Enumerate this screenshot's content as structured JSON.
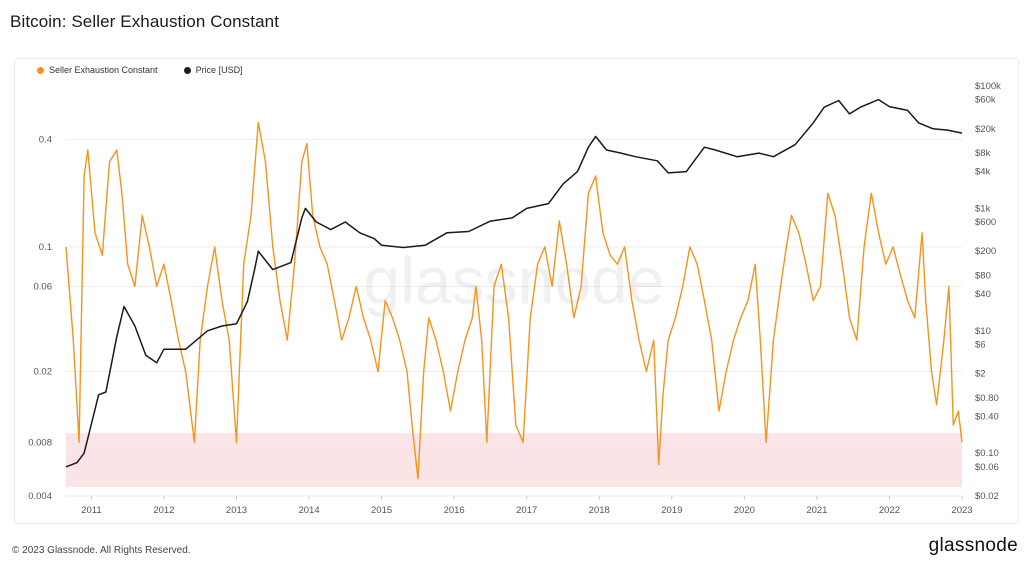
{
  "header": {
    "title": "Bitcoin: Seller Exhaustion Constant"
  },
  "footer": {
    "copyright": "© 2023 Glassnode. All Rights Reserved.",
    "brand": "glassnode"
  },
  "colors": {
    "sec": "#f7931a",
    "price": "#1a1a1a",
    "zone": "#fce4e6",
    "grid": "#eeeeee"
  },
  "chart_data": {
    "type": "line",
    "watermark": "glassnode",
    "legend": [
      {
        "name": "Seller Exhaustion Constant",
        "color": "#f7931a"
      },
      {
        "name": "Price [USD]",
        "color": "#1a1a1a"
      }
    ],
    "x_ticks": [
      "2011",
      "2012",
      "2013",
      "2014",
      "2015",
      "2016",
      "2017",
      "2018",
      "2019",
      "2020",
      "2021",
      "2022",
      "2023"
    ],
    "xlim": [
      2010.65,
      2023.0
    ],
    "left_axis": {
      "scale": "log",
      "ylim": [
        0.004,
        0.8
      ],
      "ticks": [
        {
          "v": 0.4,
          "label": "0.4"
        },
        {
          "v": 0.1,
          "label": "0.1"
        },
        {
          "v": 0.06,
          "label": "0.06"
        },
        {
          "v": 0.02,
          "label": "0.02"
        },
        {
          "v": 0.008,
          "label": "0.008"
        },
        {
          "v": 0.004,
          "label": "0.004"
        }
      ]
    },
    "right_axis": {
      "scale": "log",
      "ylim": [
        0.02,
        100000
      ],
      "ticks": [
        {
          "v": 100000,
          "label": "$100k"
        },
        {
          "v": 60000,
          "label": "$60k"
        },
        {
          "v": 20000,
          "label": "$20k"
        },
        {
          "v": 8000,
          "label": "$8k"
        },
        {
          "v": 4000,
          "label": "$4k"
        },
        {
          "v": 1000,
          "label": "$1k"
        },
        {
          "v": 600,
          "label": "$600"
        },
        {
          "v": 200,
          "label": "$200"
        },
        {
          "v": 80,
          "label": "$80"
        },
        {
          "v": 40,
          "label": "$40"
        },
        {
          "v": 10,
          "label": "$10"
        },
        {
          "v": 6,
          "label": "$6"
        },
        {
          "v": 2,
          "label": "$2"
        },
        {
          "v": 0.8,
          "label": "$0.80"
        },
        {
          "v": 0.4,
          "label": "$0.40"
        },
        {
          "v": 0.1,
          "label": "$0.10"
        },
        {
          "v": 0.06,
          "label": "$0.06"
        },
        {
          "v": 0.02,
          "label": "$0.02"
        }
      ]
    },
    "low_zone": [
      0.0045,
      0.009
    ],
    "series": [
      {
        "name": "Seller Exhaustion Constant",
        "axis": "left",
        "x": [
          2010.65,
          2010.75,
          2010.83,
          2010.9,
          2010.95,
          2011.05,
          2011.15,
          2011.25,
          2011.35,
          2011.42,
          2011.5,
          2011.6,
          2011.7,
          2011.8,
          2011.9,
          2012.0,
          2012.1,
          2012.2,
          2012.3,
          2012.42,
          2012.5,
          2012.6,
          2012.7,
          2012.8,
          2012.9,
          2013.0,
          2013.1,
          2013.2,
          2013.3,
          2013.4,
          2013.5,
          2013.6,
          2013.7,
          2013.8,
          2013.9,
          2013.97,
          2014.05,
          2014.15,
          2014.25,
          2014.35,
          2014.45,
          2014.55,
          2014.65,
          2014.75,
          2014.85,
          2014.95,
          2015.05,
          2015.15,
          2015.25,
          2015.35,
          2015.42,
          2015.5,
          2015.58,
          2015.65,
          2015.75,
          2015.85,
          2015.95,
          2016.05,
          2016.15,
          2016.25,
          2016.3,
          2016.38,
          2016.45,
          2016.55,
          2016.65,
          2016.75,
          2016.85,
          2016.95,
          2017.05,
          2017.15,
          2017.25,
          2017.35,
          2017.45,
          2017.55,
          2017.65,
          2017.75,
          2017.85,
          2017.95,
          2018.05,
          2018.15,
          2018.25,
          2018.35,
          2018.45,
          2018.55,
          2018.65,
          2018.75,
          2018.82,
          2018.88,
          2018.95,
          2019.05,
          2019.15,
          2019.25,
          2019.35,
          2019.45,
          2019.55,
          2019.65,
          2019.75,
          2019.85,
          2019.95,
          2020.05,
          2020.15,
          2020.22,
          2020.3,
          2020.4,
          2020.5,
          2020.58,
          2020.65,
          2020.75,
          2020.85,
          2020.95,
          2021.05,
          2021.15,
          2021.25,
          2021.35,
          2021.45,
          2021.55,
          2021.65,
          2021.75,
          2021.85,
          2021.95,
          2022.05,
          2022.15,
          2022.25,
          2022.35,
          2022.45,
          2022.5,
          2022.58,
          2022.65,
          2022.75,
          2022.82,
          2022.88,
          2022.95,
          2023.0
        ],
        "values": [
          0.1,
          0.03,
          0.008,
          0.25,
          0.35,
          0.12,
          0.09,
          0.3,
          0.35,
          0.2,
          0.08,
          0.06,
          0.15,
          0.1,
          0.06,
          0.08,
          0.05,
          0.03,
          0.02,
          0.008,
          0.03,
          0.06,
          0.1,
          0.05,
          0.03,
          0.008,
          0.08,
          0.15,
          0.5,
          0.3,
          0.1,
          0.05,
          0.03,
          0.08,
          0.3,
          0.38,
          0.15,
          0.1,
          0.08,
          0.05,
          0.03,
          0.04,
          0.06,
          0.04,
          0.03,
          0.02,
          0.05,
          0.04,
          0.03,
          0.02,
          0.01,
          0.005,
          0.02,
          0.04,
          0.03,
          0.02,
          0.012,
          0.02,
          0.03,
          0.04,
          0.06,
          0.03,
          0.008,
          0.06,
          0.08,
          0.04,
          0.01,
          0.008,
          0.04,
          0.08,
          0.1,
          0.06,
          0.14,
          0.08,
          0.04,
          0.06,
          0.2,
          0.25,
          0.12,
          0.09,
          0.08,
          0.1,
          0.05,
          0.03,
          0.02,
          0.03,
          0.006,
          0.015,
          0.03,
          0.04,
          0.06,
          0.1,
          0.08,
          0.05,
          0.03,
          0.012,
          0.02,
          0.03,
          0.04,
          0.05,
          0.08,
          0.03,
          0.008,
          0.03,
          0.06,
          0.1,
          0.15,
          0.12,
          0.08,
          0.05,
          0.06,
          0.2,
          0.15,
          0.08,
          0.04,
          0.03,
          0.1,
          0.2,
          0.12,
          0.08,
          0.1,
          0.07,
          0.05,
          0.04,
          0.12,
          0.05,
          0.02,
          0.013,
          0.03,
          0.06,
          0.01,
          0.012,
          0.008
        ]
      },
      {
        "name": "Price [USD]",
        "axis": "right",
        "x": [
          2010.65,
          2010.8,
          2010.9,
          2011.0,
          2011.1,
          2011.2,
          2011.35,
          2011.45,
          2011.6,
          2011.75,
          2011.9,
          2012.0,
          2012.3,
          2012.6,
          2012.8,
          2013.0,
          2013.15,
          2013.25,
          2013.3,
          2013.5,
          2013.75,
          2013.9,
          2013.95,
          2014.1,
          2014.3,
          2014.5,
          2014.7,
          2014.9,
          2015.0,
          2015.3,
          2015.6,
          2015.9,
          2016.2,
          2016.5,
          2016.8,
          2017.0,
          2017.3,
          2017.5,
          2017.7,
          2017.85,
          2017.95,
          2018.1,
          2018.3,
          2018.5,
          2018.8,
          2018.95,
          2019.2,
          2019.45,
          2019.6,
          2019.9,
          2020.2,
          2020.4,
          2020.7,
          2020.95,
          2021.1,
          2021.3,
          2021.45,
          2021.6,
          2021.85,
          2022.0,
          2022.25,
          2022.4,
          2022.6,
          2022.8,
          2023.0
        ],
        "values": [
          0.06,
          0.07,
          0.1,
          0.3,
          0.9,
          1.0,
          8,
          25,
          12,
          4,
          3,
          5,
          5,
          10,
          12,
          13,
          30,
          100,
          200,
          100,
          130,
          700,
          1000,
          600,
          450,
          600,
          400,
          320,
          250,
          230,
          250,
          400,
          420,
          620,
          700,
          1000,
          1200,
          2500,
          4000,
          10000,
          15000,
          9000,
          8000,
          7000,
          6000,
          3800,
          4000,
          10000,
          9000,
          7000,
          8000,
          7000,
          11000,
          25000,
          45000,
          58000,
          35000,
          45000,
          60000,
          46000,
          40000,
          25000,
          20000,
          19000,
          17000
        ]
      }
    ]
  }
}
